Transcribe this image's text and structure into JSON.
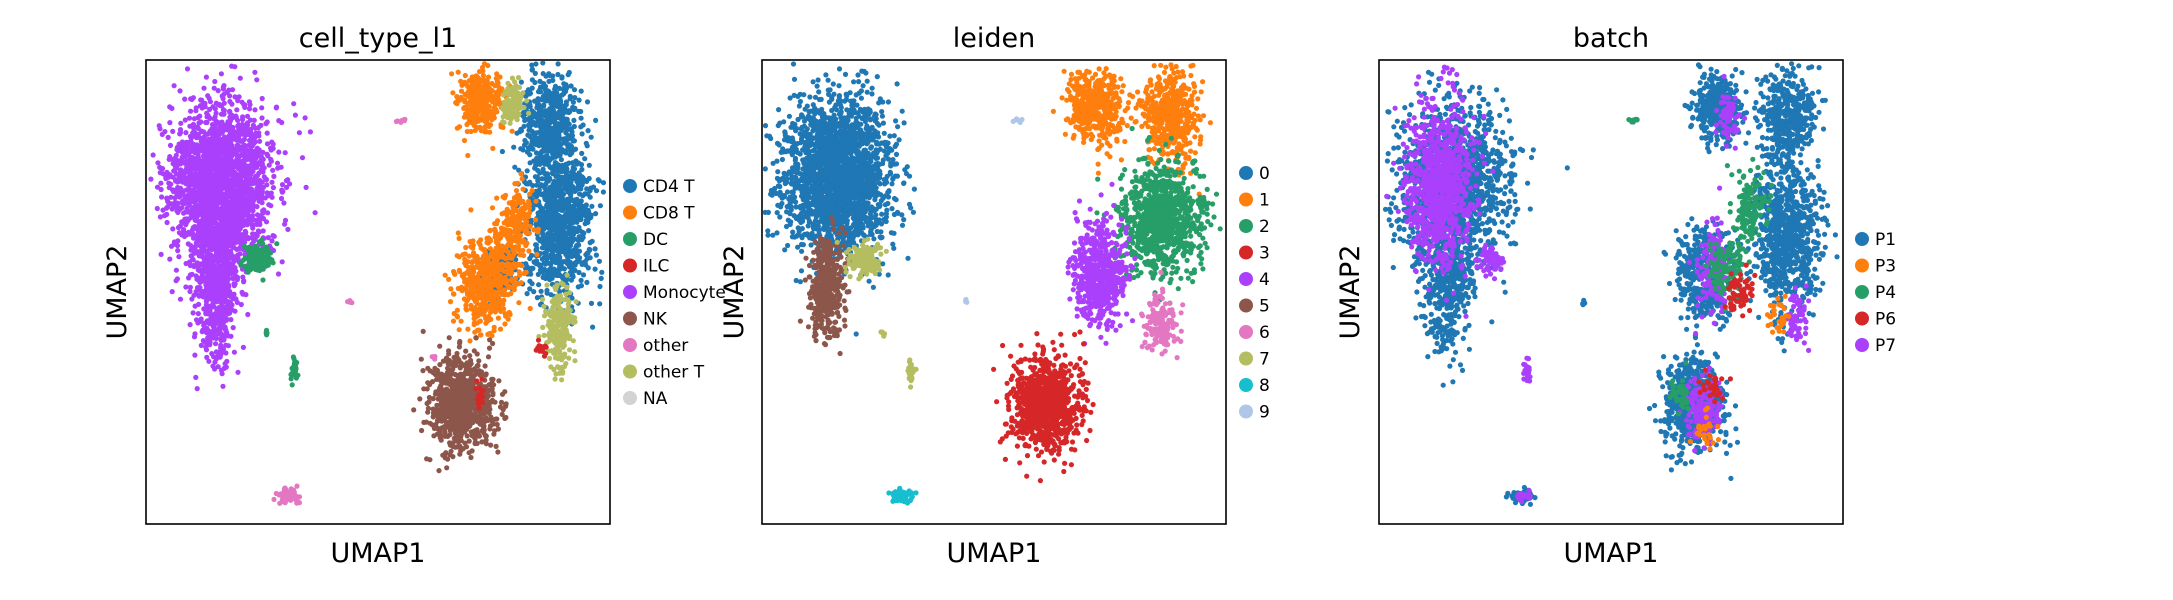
{
  "chart_data": [
    {
      "type": "scatter",
      "title": "cell_type_l1",
      "xlabel": "UMAP1",
      "ylabel": "UMAP2",
      "legend_placement": "right",
      "legend": [
        {
          "label": "CD4 T",
          "color": "#1f77b4"
        },
        {
          "label": "CD8 T",
          "color": "#ff7f0e"
        },
        {
          "label": "DC",
          "color": "#279e68"
        },
        {
          "label": "ILC",
          "color": "#d62728"
        },
        {
          "label": "Monocyte",
          "color": "#aa40fc"
        },
        {
          "label": "NK",
          "color": "#8c564b"
        },
        {
          "label": "other",
          "color": "#e377c2"
        },
        {
          "label": "other T",
          "color": "#b5bd61"
        },
        {
          "label": "NA",
          "color": "#d3d3d3"
        }
      ],
      "clusters": [
        {
          "color": "#aa40fc",
          "blobs": [
            [
              0.16,
              0.27,
              0.09,
              0.14,
              2200
            ],
            [
              0.15,
              0.48,
              0.04,
              0.13,
              700
            ]
          ]
        },
        {
          "color": "#279e68",
          "blobs": [
            [
              0.24,
              0.43,
              0.025,
              0.025,
              140
            ],
            [
              0.32,
              0.67,
              0.006,
              0.02,
              30
            ],
            [
              0.26,
              0.59,
              0.003,
              0.006,
              6
            ]
          ]
        },
        {
          "color": "#1f77b4",
          "blobs": [
            [
              0.87,
              0.14,
              0.05,
              0.09,
              500
            ],
            [
              0.89,
              0.35,
              0.06,
              0.14,
              900
            ],
            [
              0.76,
              0.46,
              0.03,
              0.05,
              120
            ]
          ]
        },
        {
          "color": "#ff7f0e",
          "blobs": [
            [
              0.72,
              0.09,
              0.04,
              0.05,
              350
            ],
            [
              0.73,
              0.48,
              0.05,
              0.08,
              500
            ],
            [
              0.8,
              0.36,
              0.03,
              0.07,
              200
            ]
          ]
        },
        {
          "color": "#b5bd61",
          "blobs": [
            [
              0.79,
              0.09,
              0.02,
              0.04,
              100
            ],
            [
              0.89,
              0.58,
              0.025,
              0.07,
              220
            ]
          ]
        },
        {
          "color": "#8c564b",
          "blobs": [
            [
              0.68,
              0.74,
              0.055,
              0.08,
              900
            ]
          ]
        },
        {
          "color": "#d62728",
          "blobs": [
            [
              0.72,
              0.72,
              0.01,
              0.02,
              20
            ],
            [
              0.85,
              0.62,
              0.01,
              0.02,
              15
            ]
          ]
        },
        {
          "color": "#e377c2",
          "blobs": [
            [
              0.31,
              0.94,
              0.02,
              0.012,
              80
            ],
            [
              0.55,
              0.13,
              0.01,
              0.003,
              8
            ],
            [
              0.44,
              0.52,
              0.003,
              0.005,
              5
            ],
            [
              0.62,
              0.64,
              0.004,
              0.005,
              5
            ]
          ]
        }
      ]
    },
    {
      "type": "scatter",
      "title": "leiden",
      "xlabel": "UMAP1",
      "ylabel": "UMAP2",
      "legend_placement": "right",
      "legend": [
        {
          "label": "0",
          "color": "#1f77b4"
        },
        {
          "label": "1",
          "color": "#ff7f0e"
        },
        {
          "label": "2",
          "color": "#279e68"
        },
        {
          "label": "3",
          "color": "#d62728"
        },
        {
          "label": "4",
          "color": "#aa40fc"
        },
        {
          "label": "5",
          "color": "#8c564b"
        },
        {
          "label": "6",
          "color": "#e377c2"
        },
        {
          "label": "7",
          "color": "#b5bd61"
        },
        {
          "label": "8",
          "color": "#17becf"
        },
        {
          "label": "9",
          "color": "#aec7e8"
        }
      ],
      "clusters": [
        {
          "color": "#1f77b4",
          "blobs": [
            [
              0.16,
              0.25,
              0.095,
              0.14,
              2200
            ]
          ]
        },
        {
          "color": "#8c564b",
          "blobs": [
            [
              0.14,
              0.49,
              0.03,
              0.09,
              400
            ]
          ]
        },
        {
          "color": "#b5bd61",
          "blobs": [
            [
              0.22,
              0.43,
              0.03,
              0.025,
              150
            ],
            [
              0.32,
              0.67,
              0.006,
              0.02,
              30
            ],
            [
              0.26,
              0.59,
              0.003,
              0.006,
              6
            ]
          ]
        },
        {
          "color": "#ff7f0e",
          "blobs": [
            [
              0.72,
              0.1,
              0.05,
              0.06,
              450
            ],
            [
              0.88,
              0.12,
              0.05,
              0.08,
              500
            ]
          ]
        },
        {
          "color": "#279e68",
          "blobs": [
            [
              0.86,
              0.34,
              0.07,
              0.1,
              900
            ]
          ]
        },
        {
          "color": "#aa40fc",
          "blobs": [
            [
              0.73,
              0.46,
              0.05,
              0.09,
              550
            ]
          ]
        },
        {
          "color": "#e377c2",
          "blobs": [
            [
              0.86,
              0.57,
              0.03,
              0.05,
              160
            ]
          ]
        },
        {
          "color": "#d62728",
          "blobs": [
            [
              0.61,
              0.74,
              0.06,
              0.08,
              1000
            ]
          ]
        },
        {
          "color": "#17becf",
          "blobs": [
            [
              0.3,
              0.94,
              0.02,
              0.012,
              90
            ]
          ]
        },
        {
          "color": "#aec7e8",
          "blobs": [
            [
              0.55,
              0.13,
              0.01,
              0.003,
              8
            ],
            [
              0.44,
              0.52,
              0.003,
              0.005,
              5
            ]
          ]
        }
      ]
    },
    {
      "type": "scatter",
      "title": "batch",
      "xlabel": "UMAP1",
      "ylabel": "UMAP2",
      "legend_placement": "right",
      "legend": [
        {
          "label": "P1",
          "color": "#1f77b4"
        },
        {
          "label": "P3",
          "color": "#ff7f0e"
        },
        {
          "label": "P4",
          "color": "#279e68"
        },
        {
          "label": "P6",
          "color": "#d62728"
        },
        {
          "label": "P7",
          "color": "#aa40fc"
        }
      ],
      "clusters": [
        {
          "color": "#1f77b4",
          "blobs": [
            [
              0.16,
              0.27,
              0.1,
              0.15,
              1400
            ],
            [
              0.15,
              0.48,
              0.04,
              0.13,
              400
            ],
            [
              0.73,
              0.1,
              0.04,
              0.06,
              400
            ],
            [
              0.88,
              0.12,
              0.05,
              0.08,
              400
            ],
            [
              0.88,
              0.38,
              0.06,
              0.14,
              800
            ],
            [
              0.7,
              0.46,
              0.05,
              0.09,
              400
            ],
            [
              0.68,
              0.74,
              0.055,
              0.08,
              700
            ],
            [
              0.31,
              0.94,
              0.02,
              0.012,
              60
            ],
            [
              0.44,
              0.52,
              0.003,
              0.005,
              5
            ]
          ]
        },
        {
          "color": "#aa40fc",
          "blobs": [
            [
              0.13,
              0.27,
              0.06,
              0.14,
              900
            ],
            [
              0.24,
              0.43,
              0.025,
              0.025,
              60
            ],
            [
              0.75,
              0.12,
              0.02,
              0.05,
              60
            ],
            [
              0.72,
              0.45,
              0.03,
              0.08,
              150
            ],
            [
              0.9,
              0.55,
              0.02,
              0.05,
              60
            ],
            [
              0.7,
              0.75,
              0.03,
              0.06,
              150
            ],
            [
              0.32,
              0.67,
              0.006,
              0.02,
              25
            ],
            [
              0.31,
              0.94,
              0.015,
              0.008,
              30
            ]
          ]
        },
        {
          "color": "#279e68",
          "blobs": [
            [
              0.8,
              0.32,
              0.03,
              0.06,
              150
            ],
            [
              0.75,
              0.45,
              0.03,
              0.05,
              120
            ],
            [
              0.65,
              0.72,
              0.02,
              0.03,
              40
            ],
            [
              0.55,
              0.13,
              0.01,
              0.003,
              8
            ]
          ]
        },
        {
          "color": "#d62728",
          "blobs": [
            [
              0.78,
              0.5,
              0.03,
              0.04,
              60
            ],
            [
              0.72,
              0.7,
              0.02,
              0.03,
              30
            ]
          ]
        },
        {
          "color": "#ff7f0e",
          "blobs": [
            [
              0.86,
              0.55,
              0.02,
              0.04,
              30
            ],
            [
              0.7,
              0.8,
              0.02,
              0.03,
              25
            ]
          ]
        }
      ]
    }
  ]
}
